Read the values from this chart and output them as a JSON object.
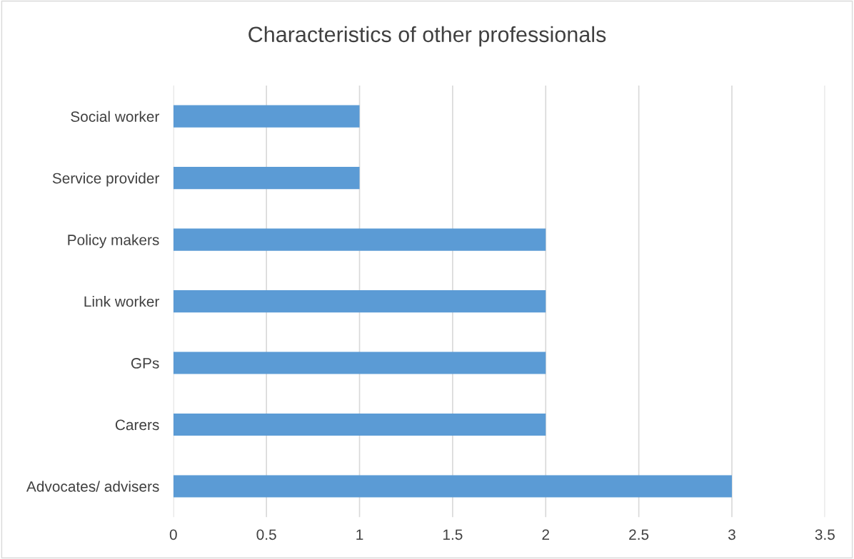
{
  "chart_data": {
    "type": "bar",
    "orientation": "horizontal",
    "title": "Characteristics of other professionals",
    "categories": [
      "Social worker",
      "Service provider",
      "Policy makers",
      "Link worker",
      "GPs",
      "Carers",
      "Advocates/ advisers"
    ],
    "values": [
      1,
      1,
      2,
      2,
      2,
      2,
      3
    ],
    "color": "#5b9bd5",
    "xlim": [
      0,
      3.5
    ],
    "xticks": [
      0,
      0.5,
      1,
      1.5,
      2,
      2.5,
      3,
      3.5
    ],
    "grid": "x",
    "legend": false
  }
}
